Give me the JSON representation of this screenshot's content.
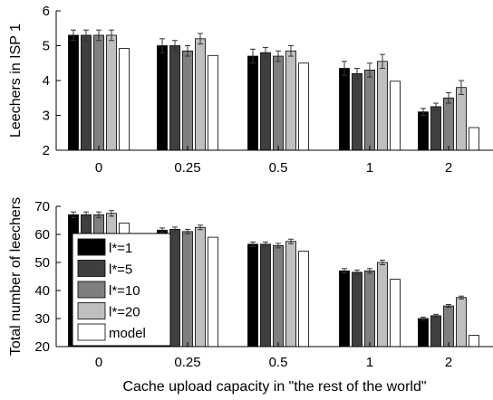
{
  "xlabel": "Cache upload capacity in \"the rest of the world\"",
  "categories": [
    "0",
    "0.25",
    "0.5",
    "1",
    "2"
  ],
  "series_colors": [
    "#000000",
    "#3f3f3f",
    "#7f7f7f",
    "#bfbfbf",
    "#ffffff"
  ],
  "chart_data": [
    {
      "type": "bar",
      "ylabel": "Leechers in ISP 1",
      "ylim": [
        2,
        6
      ],
      "yticks": [
        "2",
        "3",
        "4",
        "5",
        "6"
      ],
      "categories": [
        "0",
        "0.25",
        "0.5",
        "1",
        "2"
      ],
      "series": [
        {
          "name": "l*=1",
          "values": [
            5.3,
            5.0,
            4.7,
            4.35,
            3.1
          ],
          "errors": [
            0.15,
            0.2,
            0.2,
            0.2,
            0.1
          ]
        },
        {
          "name": "l*=5",
          "values": [
            5.3,
            5.0,
            4.8,
            4.2,
            3.25
          ],
          "errors": [
            0.15,
            0.15,
            0.15,
            0.15,
            0.1
          ]
        },
        {
          "name": "l*=10",
          "values": [
            5.3,
            4.85,
            4.7,
            4.3,
            3.5
          ],
          "errors": [
            0.15,
            0.15,
            0.15,
            0.2,
            0.15
          ]
        },
        {
          "name": "l*=20",
          "values": [
            5.3,
            5.2,
            4.85,
            4.55,
            3.8
          ],
          "errors": [
            0.15,
            0.15,
            0.15,
            0.2,
            0.2
          ]
        },
        {
          "name": "model",
          "values": [
            4.92,
            4.72,
            4.5,
            3.98,
            2.65
          ]
        }
      ]
    },
    {
      "type": "bar",
      "ylabel": "Total number of leechers",
      "ylim": [
        20,
        70
      ],
      "yticks": [
        "20",
        "30",
        "40",
        "50",
        "60",
        "70"
      ],
      "categories": [
        "0",
        "0.25",
        "0.5",
        "1",
        "2"
      ],
      "legend": {
        "position": "left",
        "entries": [
          "l*=1",
          "l*=5",
          "l*=10",
          "l*=20",
          "model"
        ]
      },
      "series": [
        {
          "name": "l*=1",
          "values": [
            67,
            61.5,
            56.5,
            47,
            30
          ],
          "errors": [
            1,
            0.8,
            0.8,
            0.8,
            0.5
          ]
        },
        {
          "name": "l*=5",
          "values": [
            67,
            61.8,
            56.5,
            46.5,
            31
          ],
          "errors": [
            1,
            0.8,
            0.8,
            0.8,
            0.5
          ]
        },
        {
          "name": "l*=10",
          "values": [
            67,
            61,
            56,
            47,
            34.5
          ],
          "errors": [
            1,
            0.8,
            0.8,
            0.8,
            0.5
          ]
        },
        {
          "name": "l*=20",
          "values": [
            67.5,
            62.5,
            57.5,
            50,
            37.5
          ],
          "errors": [
            1,
            0.8,
            0.8,
            0.8,
            0.5
          ]
        },
        {
          "name": "model",
          "values": [
            64,
            59,
            54,
            44,
            24
          ]
        }
      ]
    }
  ]
}
